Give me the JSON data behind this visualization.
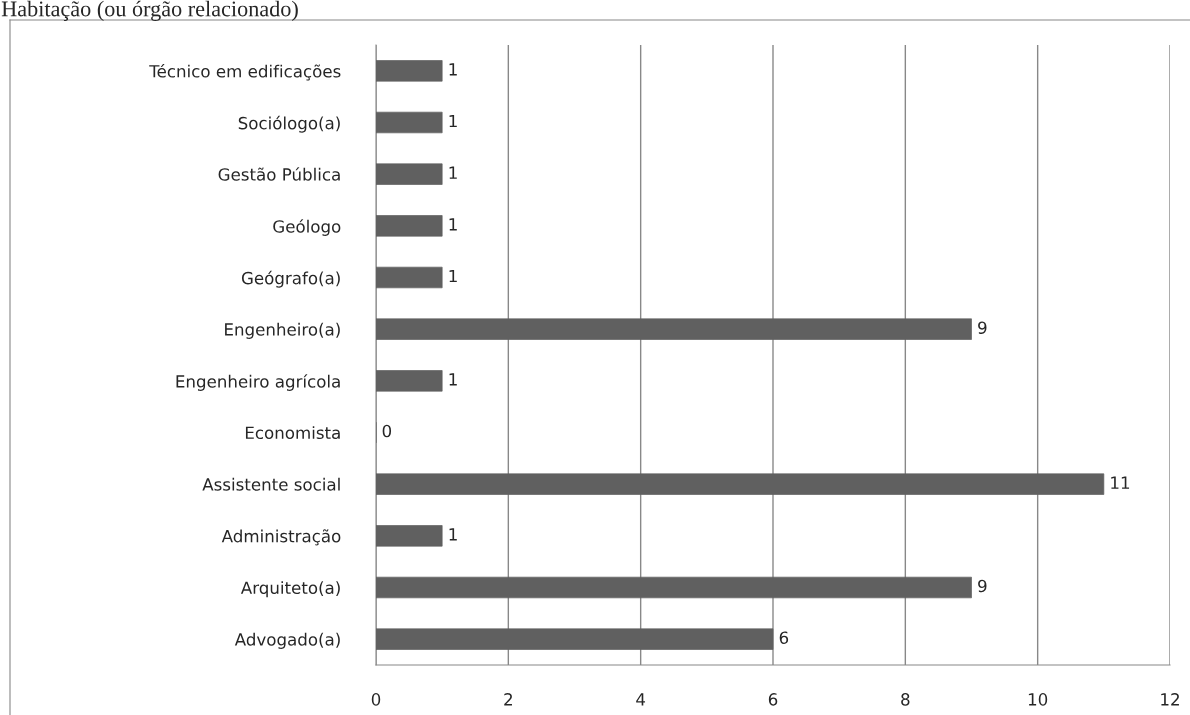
{
  "chart_data": {
    "type": "bar",
    "orientation": "horizontal",
    "title": "Habitação (ou órgão relacionado)",
    "categories": [
      "Técnico em edificações",
      "Sociólogo(a)",
      "Gestão Pública",
      "Geólogo",
      "Geógrafo(a)",
      "Engenheiro(a)",
      "Engenheiro agrícola",
      "Economista",
      "Assistente social",
      "Administração",
      "Arquiteto(a)",
      "Advogado(a)"
    ],
    "values": [
      1,
      1,
      1,
      1,
      1,
      9,
      1,
      0,
      11,
      1,
      9,
      6
    ],
    "color": "#606060",
    "xlim": [
      0,
      12
    ],
    "xticks": [
      0,
      2,
      4,
      6,
      8,
      10,
      12
    ],
    "grid": "x",
    "data_labels": true
  }
}
